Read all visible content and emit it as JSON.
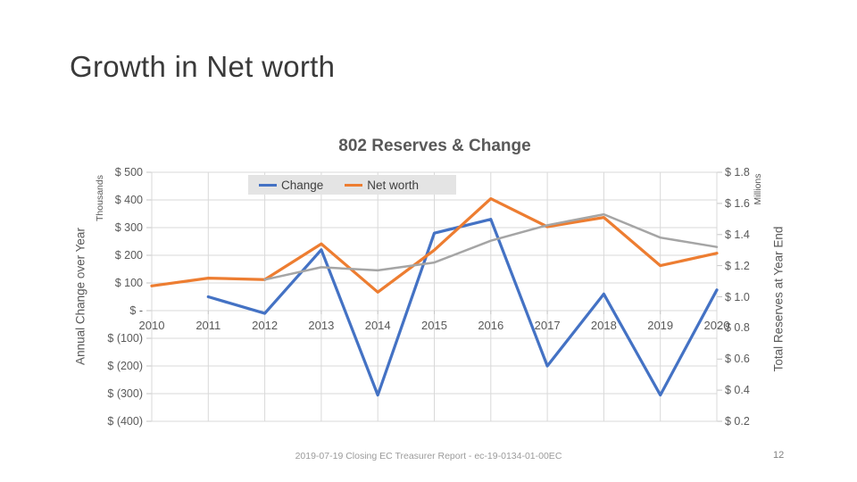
{
  "slide": {
    "title": "Growth in Net worth",
    "footer": "2019-07-19 Closing EC Treasurer Report - ec-19-0134-01-00EC",
    "page_number": "12"
  },
  "chart_data": {
    "type": "line",
    "title": "802 Reserves & Change",
    "categories": [
      "2010",
      "2011",
      "2012",
      "2013",
      "2014",
      "2015",
      "2016",
      "2017",
      "2018",
      "2019",
      "2020"
    ],
    "series": [
      {
        "name": "Change",
        "axis": "left",
        "units": "thousands of $ (annual change)",
        "color": "#4472C4",
        "values": [
          null,
          50,
          -10,
          220,
          -305,
          280,
          330,
          -200,
          60,
          -305,
          75
        ]
      },
      {
        "name": "Net worth",
        "axis": "right",
        "units": "millions of $ (total reserves)",
        "color": "#ED7D31",
        "values": [
          1.07,
          1.12,
          1.11,
          1.34,
          1.03,
          1.3,
          1.63,
          1.45,
          1.51,
          1.2,
          1.28
        ]
      },
      {
        "name": "(unlabeled gray line)",
        "axis": "right",
        "units": "millions of $",
        "color": "#A5A5A5",
        "values": [
          null,
          null,
          1.11,
          1.19,
          1.17,
          1.22,
          1.36,
          1.46,
          1.53,
          1.38,
          1.32
        ]
      }
    ],
    "left_axis": {
      "title": "Annual Change over Year",
      "units": "Thousands",
      "ylim": [
        -400,
        500
      ],
      "tick_step": 100,
      "tick_labels": [
        "$ 500",
        "$ 400",
        "$ 300",
        "$ 200",
        "$ 100",
        "$ -",
        "$ (100)",
        "$ (200)",
        "$ (300)",
        "$ (400)"
      ]
    },
    "right_axis": {
      "title": "Total Reserves at Year End",
      "units": "Millions",
      "ylim": [
        0.2,
        1.8
      ],
      "tick_step": 0.2,
      "tick_labels": [
        "$ 1.8",
        "$ 1.6",
        "$ 1.4",
        "$ 1.2",
        "$ 1.0",
        "$ 0.8",
        "$ 0.6",
        "$ 0.4",
        "$ 0.2"
      ]
    },
    "grid": true,
    "grid_color": "#D9D9D9",
    "legend_position": "inside-top-left",
    "legend": {
      "background": "#E4E4E4",
      "items": [
        {
          "label": "Change",
          "color": "#4472C4"
        },
        {
          "label": "Net worth",
          "color": "#ED7D31"
        }
      ]
    }
  }
}
